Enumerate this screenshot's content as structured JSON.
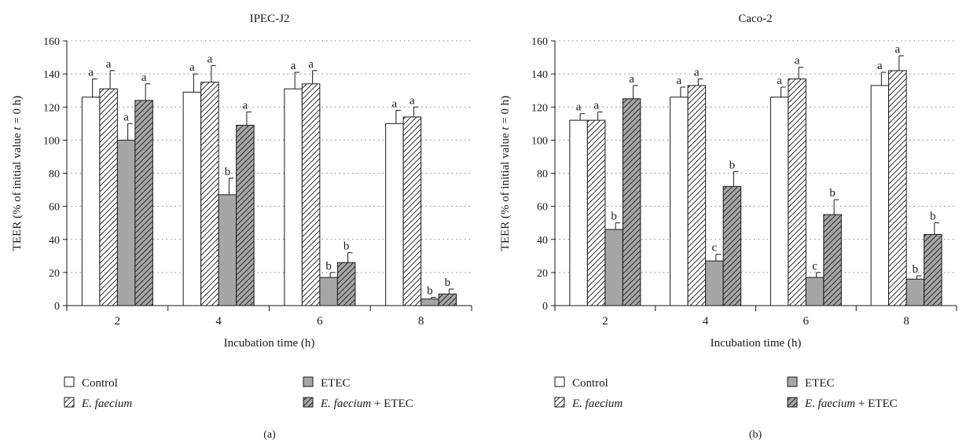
{
  "chart_data": [
    {
      "type": "bar",
      "panel_label": "(a)",
      "title": "IPEC-J2",
      "xlabel": "Incubation time (h)",
      "ylabel_parts": [
        "TEER (% of initial value ",
        "t",
        " = 0 h)"
      ],
      "ylim": [
        0,
        160
      ],
      "yticks": [
        0,
        20,
        40,
        60,
        80,
        100,
        120,
        140,
        160
      ],
      "grid": "horizontal dotted",
      "categories": [
        "2",
        "4",
        "6",
        "8"
      ],
      "series": [
        {
          "name": "Control",
          "values": [
            126,
            129,
            131,
            110
          ],
          "errors": [
            11,
            11,
            10,
            8
          ],
          "letters": [
            "a",
            "a",
            "a",
            "a"
          ],
          "fill": "#ffffff",
          "pattern": "none"
        },
        {
          "name": "E. faecium",
          "values": [
            131,
            135,
            134,
            114
          ],
          "errors": [
            11,
            10,
            8,
            6
          ],
          "letters": [
            "a",
            "a",
            "a",
            "a"
          ],
          "fill": "#ffffff",
          "pattern": "hatch"
        },
        {
          "name": "ETEC",
          "values": [
            100,
            67,
            17,
            4
          ],
          "errors": [
            10,
            10,
            3,
            1
          ],
          "letters": [
            "a",
            "b",
            "b",
            "b"
          ],
          "fill": "#a6a6a6",
          "pattern": "none"
        },
        {
          "name": "E. faecium + ETEC",
          "values": [
            124,
            109,
            26,
            7
          ],
          "errors": [
            10,
            8,
            6,
            3
          ],
          "letters": [
            "a",
            "a",
            "b",
            "b"
          ],
          "fill": "#a6a6a6",
          "pattern": "hatch"
        }
      ]
    },
    {
      "type": "bar",
      "panel_label": "(b)",
      "title": "Caco-2",
      "xlabel": "Incubation time (h)",
      "ylabel_parts": [
        "TEER (% of initial value ",
        "t",
        " = 0 h)"
      ],
      "ylim": [
        0,
        160
      ],
      "yticks": [
        0,
        20,
        40,
        60,
        80,
        100,
        120,
        140,
        160
      ],
      "grid": "horizontal dotted",
      "categories": [
        "2",
        "4",
        "6",
        "8"
      ],
      "series": [
        {
          "name": "Control",
          "values": [
            112,
            126,
            126,
            133
          ],
          "errors": [
            4,
            6,
            6,
            8
          ],
          "letters": [
            "a",
            "a",
            "a",
            "a"
          ],
          "fill": "#ffffff",
          "pattern": "none"
        },
        {
          "name": "E. faecium",
          "values": [
            112,
            133,
            137,
            142
          ],
          "errors": [
            5,
            4,
            7,
            9
          ],
          "letters": [
            "a",
            "a",
            "a",
            "a"
          ],
          "fill": "#ffffff",
          "pattern": "hatch"
        },
        {
          "name": "ETEC",
          "values": [
            46,
            27,
            17,
            16
          ],
          "errors": [
            4,
            4,
            3,
            2
          ],
          "letters": [
            "b",
            "c",
            "c",
            "b"
          ],
          "fill": "#a6a6a6",
          "pattern": "none"
        },
        {
          "name": "E. faecium + ETEC",
          "values": [
            125,
            72,
            55,
            43
          ],
          "errors": [
            8,
            9,
            9,
            7
          ],
          "letters": [
            "a",
            "b",
            "b",
            "b"
          ],
          "fill": "#a6a6a6",
          "pattern": "hatch"
        }
      ]
    }
  ],
  "legend": {
    "items": [
      {
        "name": "Control",
        "parts": [
          {
            "text": "Control",
            "italic": false
          }
        ]
      },
      {
        "name": "E. faecium",
        "parts": [
          {
            "text": "E. faecium",
            "italic": true
          }
        ]
      },
      {
        "name": "ETEC",
        "parts": [
          {
            "text": "ETEC",
            "italic": false
          }
        ]
      },
      {
        "name": "E. faecium + ETEC",
        "parts": [
          {
            "text": "E. faecium",
            "italic": true
          },
          {
            "text": " + ETEC",
            "italic": false
          }
        ]
      }
    ]
  },
  "colors": {
    "axis": "#1a1a1a",
    "grid": "#808080",
    "bar_gray": "#a6a6a6",
    "bar_white": "#ffffff"
  }
}
